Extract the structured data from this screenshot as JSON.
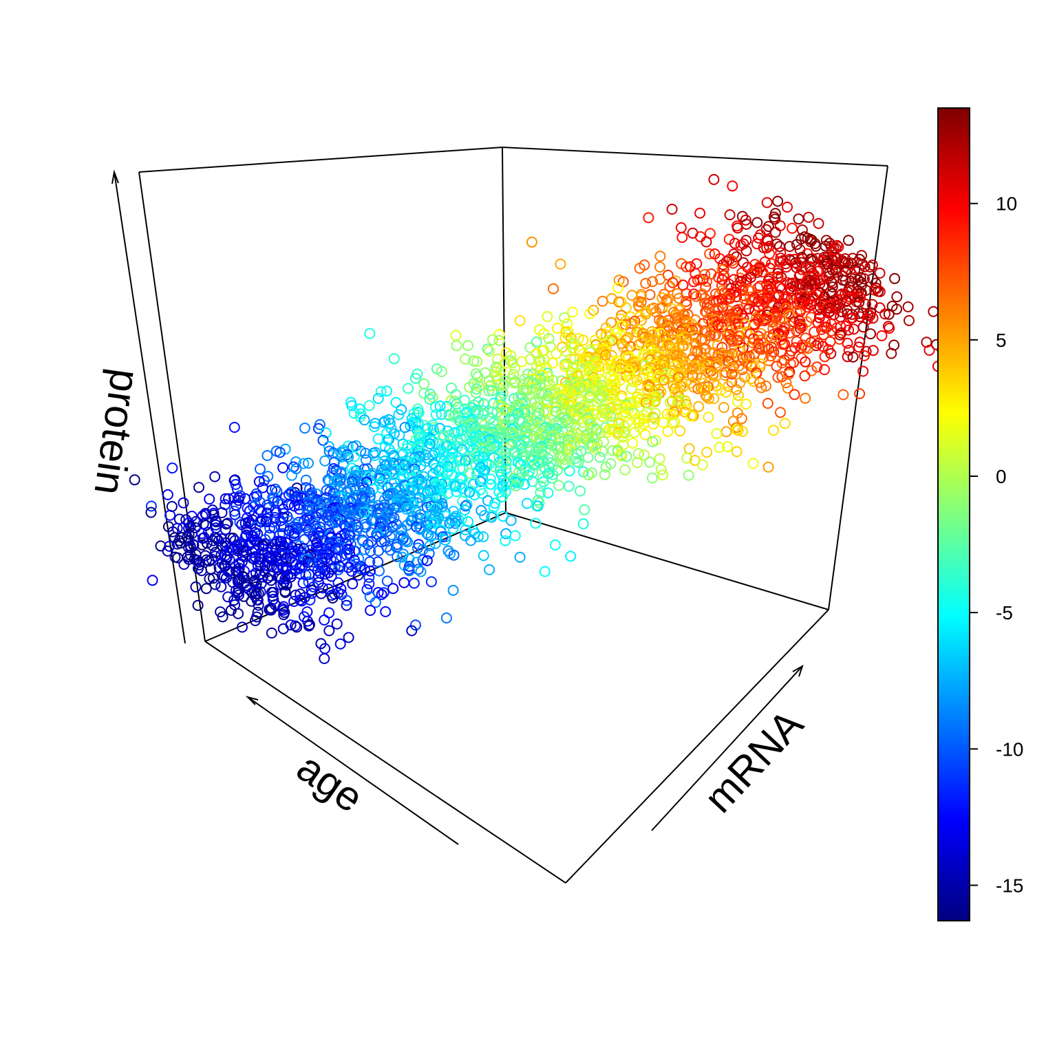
{
  "chart_data": {
    "type": "scatter",
    "projection": "3d",
    "title": "",
    "xlabel": "age",
    "ylabel": "mRNA",
    "zlabel": "protein",
    "box": "back panels, no tick marks on axes",
    "marker": "open circle",
    "color_scale": {
      "type": "colorbar",
      "palette": "jet",
      "colors": [
        "#00007F",
        "#0000FF",
        "#007FFF",
        "#00FFFF",
        "#7FFF7F",
        "#FFFF00",
        "#FF7F00",
        "#FF0000",
        "#7F0000"
      ],
      "range": [
        -16.3,
        13.5
      ],
      "ticks": [
        10,
        5,
        0,
        -5,
        -10,
        -15
      ],
      "tick_labels": [
        "10",
        "5",
        "0",
        "-5",
        "-10",
        "-15"
      ],
      "placement": "right"
    },
    "point_cloud": {
      "description": "dense cloud lying on a tilted plane; color increases from low-age/low-mRNA corner to high-mRNA corner",
      "color_min": -16,
      "color_max": 13
    }
  }
}
